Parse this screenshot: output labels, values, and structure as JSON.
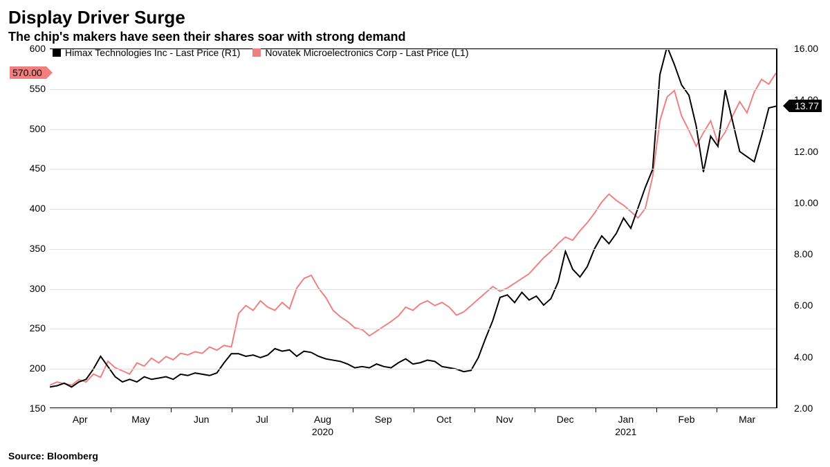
{
  "title": "Display Driver Surge",
  "subtitle": "The chip's makers have seen their shares soar with strong demand",
  "source": "Source: Bloomberg",
  "chart": {
    "type": "line",
    "background_color": "#ffffff",
    "grid_color": "#e0e0e0",
    "border_color": "#000000",
    "title_fontsize": 26,
    "subtitle_fontsize": 18,
    "label_fontsize": 14,
    "y_left": {
      "min": 150,
      "max": 600,
      "ticks": [
        150,
        200,
        250,
        300,
        350,
        400,
        450,
        500,
        550,
        600
      ]
    },
    "y_right": {
      "min": 2.0,
      "max": 16.0,
      "ticks": [
        "2.00",
        "4.00",
        "6.00",
        "8.00",
        "10.00",
        "12.00",
        "14.00",
        "16.00"
      ]
    },
    "x_labels": [
      "Apr",
      "May",
      "Jun",
      "Jul",
      "Aug",
      "Sep",
      "Oct",
      "Nov",
      "Dec",
      "Jan",
      "Feb",
      "Mar"
    ],
    "x_years": [
      {
        "label": "2020",
        "at_index": 4
      },
      {
        "label": "2021",
        "at_index": 9
      }
    ],
    "legend": [
      {
        "name": "Himax Technologies Inc - Last Price (R1)",
        "color": "#000000"
      },
      {
        "name": "Novatek Microelectronics Corp - Last Price (L1)",
        "color": "#f08080"
      }
    ],
    "marker_left": {
      "value": "570.00",
      "y_on_left_axis": 570,
      "bg": "#f08080",
      "text_color": "#000000"
    },
    "marker_right": {
      "value": "13.77",
      "y_on_right_axis": 13.77,
      "bg": "#000000",
      "text_color": "#ffffff"
    },
    "series": {
      "novatek_left": {
        "color": "#f08080",
        "line_width": 2,
        "axis": "left",
        "points": [
          [
            0,
            178
          ],
          [
            2,
            182
          ],
          [
            4,
            180
          ],
          [
            6,
            178
          ],
          [
            8,
            185
          ],
          [
            10,
            182
          ],
          [
            12,
            192
          ],
          [
            14,
            188
          ],
          [
            16,
            208
          ],
          [
            18,
            200
          ],
          [
            20,
            196
          ],
          [
            22,
            192
          ],
          [
            24,
            206
          ],
          [
            26,
            202
          ],
          [
            28,
            212
          ],
          [
            30,
            206
          ],
          [
            32,
            214
          ],
          [
            34,
            210
          ],
          [
            36,
            218
          ],
          [
            38,
            216
          ],
          [
            40,
            220
          ],
          [
            42,
            218
          ],
          [
            44,
            226
          ],
          [
            46,
            222
          ],
          [
            48,
            228
          ],
          [
            50,
            226
          ],
          [
            52,
            268
          ],
          [
            54,
            278
          ],
          [
            56,
            272
          ],
          [
            58,
            284
          ],
          [
            60,
            276
          ],
          [
            62,
            272
          ],
          [
            64,
            282
          ],
          [
            66,
            274
          ],
          [
            68,
            300
          ],
          [
            70,
            312
          ],
          [
            72,
            316
          ],
          [
            74,
            300
          ],
          [
            76,
            288
          ],
          [
            78,
            272
          ],
          [
            80,
            264
          ],
          [
            82,
            258
          ],
          [
            84,
            250
          ],
          [
            86,
            248
          ],
          [
            88,
            240
          ],
          [
            90,
            246
          ],
          [
            92,
            252
          ],
          [
            94,
            258
          ],
          [
            96,
            265
          ],
          [
            98,
            276
          ],
          [
            100,
            272
          ],
          [
            102,
            280
          ],
          [
            104,
            284
          ],
          [
            106,
            278
          ],
          [
            108,
            282
          ],
          [
            110,
            276
          ],
          [
            112,
            266
          ],
          [
            114,
            270
          ],
          [
            116,
            278
          ],
          [
            118,
            286
          ],
          [
            120,
            294
          ],
          [
            122,
            302
          ],
          [
            124,
            296
          ],
          [
            126,
            300
          ],
          [
            128,
            306
          ],
          [
            130,
            312
          ],
          [
            132,
            318
          ],
          [
            134,
            328
          ],
          [
            136,
            338
          ],
          [
            138,
            346
          ],
          [
            140,
            356
          ],
          [
            142,
            364
          ],
          [
            144,
            360
          ],
          [
            146,
            372
          ],
          [
            148,
            382
          ],
          [
            150,
            394
          ],
          [
            152,
            408
          ],
          [
            154,
            418
          ],
          [
            156,
            410
          ],
          [
            158,
            404
          ],
          [
            160,
            396
          ],
          [
            162,
            388
          ],
          [
            164,
            400
          ],
          [
            166,
            440
          ],
          [
            168,
            510
          ],
          [
            170,
            540
          ],
          [
            172,
            548
          ],
          [
            174,
            516
          ],
          [
            176,
            498
          ],
          [
            178,
            478
          ],
          [
            180,
            495
          ],
          [
            182,
            510
          ],
          [
            184,
            482
          ],
          [
            186,
            496
          ],
          [
            188,
            516
          ],
          [
            190,
            534
          ],
          [
            192,
            520
          ],
          [
            194,
            546
          ],
          [
            196,
            562
          ],
          [
            198,
            556
          ],
          [
            200,
            570
          ]
        ]
      },
      "himax_right": {
        "color": "#000000",
        "line_width": 2,
        "axis": "right",
        "points": [
          [
            0,
            2.8
          ],
          [
            2,
            2.85
          ],
          [
            4,
            2.95
          ],
          [
            6,
            2.8
          ],
          [
            8,
            3.0
          ],
          [
            10,
            3.1
          ],
          [
            12,
            3.5
          ],
          [
            14,
            4.0
          ],
          [
            16,
            3.6
          ],
          [
            18,
            3.2
          ],
          [
            20,
            3.0
          ],
          [
            22,
            3.1
          ],
          [
            24,
            3.0
          ],
          [
            26,
            3.2
          ],
          [
            28,
            3.1
          ],
          [
            30,
            3.15
          ],
          [
            32,
            3.2
          ],
          [
            34,
            3.1
          ],
          [
            36,
            3.3
          ],
          [
            38,
            3.25
          ],
          [
            40,
            3.35
          ],
          [
            42,
            3.3
          ],
          [
            44,
            3.25
          ],
          [
            46,
            3.35
          ],
          [
            48,
            3.75
          ],
          [
            50,
            4.1
          ],
          [
            52,
            4.1
          ],
          [
            54,
            4.0
          ],
          [
            56,
            4.05
          ],
          [
            58,
            3.95
          ],
          [
            60,
            4.05
          ],
          [
            62,
            4.3
          ],
          [
            64,
            4.2
          ],
          [
            66,
            4.25
          ],
          [
            68,
            4.0
          ],
          [
            70,
            4.2
          ],
          [
            72,
            4.15
          ],
          [
            74,
            4.0
          ],
          [
            76,
            3.9
          ],
          [
            78,
            3.85
          ],
          [
            80,
            3.8
          ],
          [
            82,
            3.7
          ],
          [
            84,
            3.55
          ],
          [
            86,
            3.6
          ],
          [
            88,
            3.55
          ],
          [
            90,
            3.7
          ],
          [
            92,
            3.6
          ],
          [
            94,
            3.55
          ],
          [
            96,
            3.75
          ],
          [
            98,
            3.9
          ],
          [
            100,
            3.7
          ],
          [
            102,
            3.75
          ],
          [
            104,
            3.85
          ],
          [
            106,
            3.8
          ],
          [
            108,
            3.6
          ],
          [
            110,
            3.55
          ],
          [
            112,
            3.5
          ],
          [
            114,
            3.4
          ],
          [
            116,
            3.45
          ],
          [
            118,
            3.95
          ],
          [
            120,
            4.7
          ],
          [
            122,
            5.4
          ],
          [
            124,
            6.3
          ],
          [
            126,
            6.4
          ],
          [
            128,
            6.1
          ],
          [
            130,
            6.5
          ],
          [
            132,
            6.2
          ],
          [
            134,
            6.35
          ],
          [
            136,
            6.0
          ],
          [
            138,
            6.25
          ],
          [
            140,
            6.9
          ],
          [
            142,
            8.1
          ],
          [
            144,
            7.4
          ],
          [
            146,
            7.1
          ],
          [
            148,
            7.5
          ],
          [
            150,
            8.2
          ],
          [
            152,
            8.7
          ],
          [
            154,
            8.4
          ],
          [
            156,
            8.8
          ],
          [
            158,
            9.4
          ],
          [
            160,
            9.0
          ],
          [
            162,
            9.8
          ],
          [
            164,
            10.6
          ],
          [
            166,
            11.3
          ],
          [
            168,
            15.0
          ],
          [
            170,
            16.1
          ],
          [
            172,
            15.4
          ],
          [
            174,
            14.6
          ],
          [
            176,
            14.2
          ],
          [
            178,
            13.0
          ],
          [
            180,
            11.2
          ],
          [
            182,
            12.6
          ],
          [
            184,
            12.2
          ],
          [
            186,
            14.4
          ],
          [
            188,
            13.2
          ],
          [
            190,
            12.0
          ],
          [
            192,
            11.8
          ],
          [
            194,
            11.6
          ],
          [
            196,
            12.6
          ],
          [
            198,
            13.7
          ],
          [
            200,
            13.77
          ]
        ]
      }
    }
  }
}
